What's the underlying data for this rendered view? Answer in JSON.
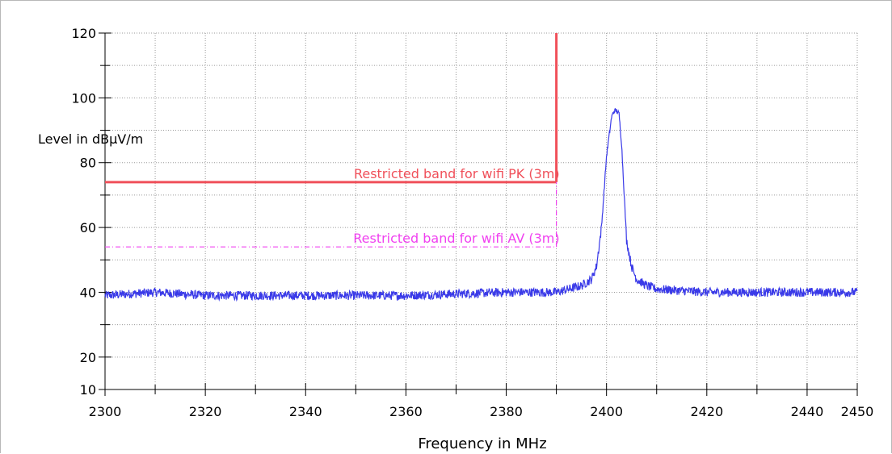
{
  "chart_data": {
    "type": "line",
    "title": "",
    "xlabel": "Frequency in MHz",
    "ylabel": "Level in dBµV/m",
    "xlim": [
      2300,
      2450
    ],
    "ylim": [
      10,
      120
    ],
    "x_ticks": [
      2300,
      2320,
      2340,
      2360,
      2380,
      2400,
      2420,
      2440,
      2450
    ],
    "y_ticks": [
      10,
      20,
      40,
      60,
      80,
      100,
      120
    ],
    "grid": true,
    "series": [
      {
        "name": "",
        "color": "#3a3ae8",
        "style": "noisy-trace",
        "x": [
          2300,
          2310,
          2320,
          2330,
          2340,
          2350,
          2360,
          2370,
          2380,
          2390,
          2395,
          2397,
          2398,
          2399,
          2400,
          2401,
          2401.5,
          2402,
          2402.5,
          2403,
          2404,
          2405,
          2406,
          2408,
          2410,
          2420,
          2430,
          2440,
          2450
        ],
        "y": [
          39,
          40,
          39,
          39,
          39,
          39,
          39,
          39.5,
          40,
          40,
          42,
          44,
          48,
          60,
          82,
          94,
          96,
          96,
          95,
          86,
          56,
          48,
          44,
          42,
          41,
          40,
          40,
          40,
          40
        ]
      }
    ],
    "limit_lines": [
      {
        "name": "Restricted band for  wifi  PK (3m)",
        "color": "#f0505a",
        "style": "solid",
        "level": 74,
        "x_start": 2300,
        "x_end": 2390,
        "vertical_to": 120
      },
      {
        "name": "Restricted band for  wifi  AV (3m)",
        "color": "#f040f0",
        "style": "dash-dot",
        "level": 54,
        "x_start": 2300,
        "x_end": 2390,
        "vertical_to": 74
      }
    ]
  }
}
